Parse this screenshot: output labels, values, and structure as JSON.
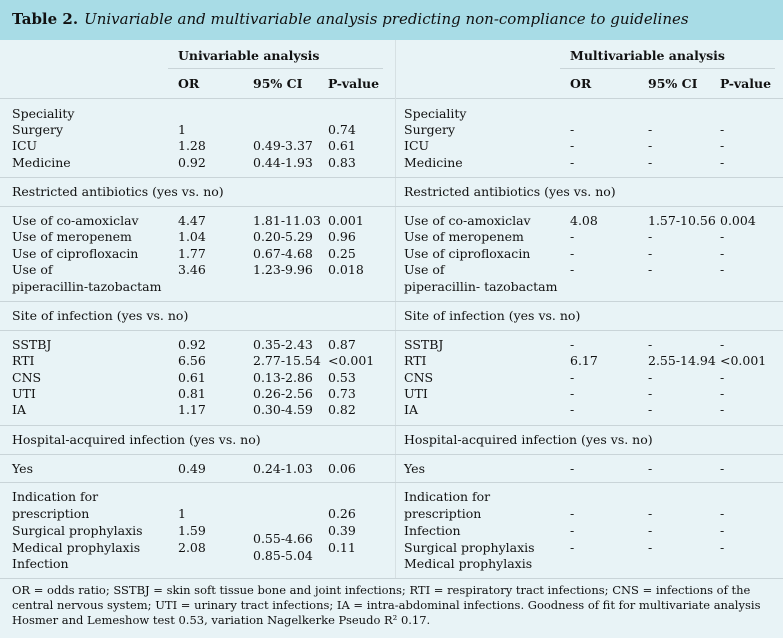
{
  "title": {
    "label": "Table 2.",
    "text": "Univariable and multivariable analysis predicting non-compliance to guidelines"
  },
  "headers": {
    "uni": "Univariable analysis",
    "multi": "Multivariable analysis",
    "or": "OR",
    "ci": "95% CI",
    "p": "P-value"
  },
  "rows": [
    {
      "l1": "Speciality",
      "l2": "",
      "or": "",
      "ci": "",
      "p": "",
      "r1": "Speciality",
      "r2": "",
      "mor": "",
      "mci": "",
      "mp": ""
    },
    {
      "l1": "Surgery",
      "or": "1",
      "ci": "",
      "p": "0.74",
      "r1": "Surgery",
      "mor": "-",
      "mci": "-",
      "mp": "-"
    },
    {
      "l1": "ICU",
      "or": "1.28",
      "ci": "0.49-3.37",
      "p": "0.61",
      "r1": "ICU",
      "mor": "-",
      "mci": "-",
      "mp": "-"
    },
    {
      "l1": "Medicine",
      "or": "0.92",
      "ci": "0.44-1.93",
      "p": "0.83",
      "r1": "Medicine",
      "mor": "-",
      "mci": "-",
      "mp": "-"
    },
    {
      "l1": "Restricted antibiotics (yes vs. no)",
      "r1": "Restricted antibiotics (yes vs. no)"
    },
    {
      "l1": "Use of co-amoxiclav",
      "or": "4.47",
      "ci": "1.81-11.03",
      "p": "0.001",
      "r1": "Use of co-amoxiclav",
      "mor": "4.08",
      "mci": "1.57-10.56",
      "mp": "0.004"
    },
    {
      "l1": "Use of meropenem",
      "or": "1.04",
      "ci": "0.20-5.29",
      "p": "0.96",
      "r1": "Use of meropenem",
      "mor": "-",
      "mci": "-",
      "mp": "-"
    },
    {
      "l1": "Use of ciprofloxacin",
      "or": "1.77",
      "ci": "0.67-4.68",
      "p": "0.25",
      "r1": "Use of ciprofloxacin",
      "mor": "-",
      "mci": "-",
      "mp": "-"
    },
    {
      "l1": "Use of",
      "or": "3.46",
      "ci": "1.23-9.96",
      "p": "0.018",
      "r1": "Use of",
      "mor": "-",
      "mci": "-",
      "mp": "-"
    },
    {
      "l1": "piperacillin-tazobactam",
      "r1": "piperacillin- tazobactam"
    },
    {
      "l1": "Site of infection (yes vs. no)",
      "r1": "Site of infection (yes vs. no)"
    },
    {
      "l1": "SSTBJ",
      "or": "0.92",
      "ci": "0.35-2.43",
      "p": "0.87",
      "r1": "SSTBJ",
      "mor": "-",
      "mci": "-",
      "mp": "-"
    },
    {
      "l1": "RTI",
      "or": "6.56",
      "ci": "2.77-15.54",
      "p": "<0.001",
      "r1": "RTI",
      "mor": "6.17",
      "mci": "2.55-14.94",
      "mp": "<0.001"
    },
    {
      "l1": "CNS",
      "or": "0.61",
      "ci": "0.13-2.86",
      "p": "0.53",
      "r1": "CNS",
      "mor": "-",
      "mci": "-",
      "mp": "-"
    },
    {
      "l1": "UTI",
      "or": "0.81",
      "ci": "0.26-2.56",
      "p": "0.73",
      "r1": "UTI",
      "mor": "-",
      "mci": "-",
      "mp": "-"
    },
    {
      "l1": "IA",
      "or": "1.17",
      "ci": "0.30-4.59",
      "p": "0.82",
      "r1": "IA",
      "mor": "-",
      "mci": "-",
      "mp": "-"
    },
    {
      "l1": "Hospital-acquired infection (yes vs. no)",
      "r1": "Hospital-acquired infection (yes vs. no)"
    },
    {
      "l1": "Yes",
      "or": "0.49",
      "ci": "0.24-1.03",
      "p": "0.06",
      "r1": "Yes",
      "mor": "-",
      "mci": "-",
      "mp": "-"
    },
    {
      "l1": "Indication for",
      "r1": "Indication for"
    },
    {
      "l1": "prescription",
      "or": "1",
      "ci": "",
      "p": "0.26",
      "r1": "prescription",
      "mor": "-",
      "mci": "-",
      "mp": "-"
    },
    {
      "l1": "Surgical prophylaxis",
      "or": "1.59",
      "ci": "0.55-4.66",
      "p": "0.39",
      "r1": "Infection",
      "mor": "-",
      "mci": "-",
      "mp": "-"
    },
    {
      "l1": "Medical prophylaxis",
      "or": "2.08",
      "ci": "0.85-5.04",
      "p": "0.11",
      "r1": "Surgical prophylaxis",
      "mor": "-",
      "mci": "-",
      "mp": "-"
    },
    {
      "l1": "Infection",
      "r1": "Medical prophylaxis"
    }
  ],
  "footnote": "OR = odds ratio; SSTBJ = skin soft tissue bone and joint infections; RTI = respiratory tract infections; CNS = infections of the central nervous system; UTI = urinary tract infections; IA = intra-abdominal infections. Goodness of fit for multivariate analysis Hosmer and Lemeshow test 0.53, variation Nagelkerke Pseudo R² 0.17."
}
